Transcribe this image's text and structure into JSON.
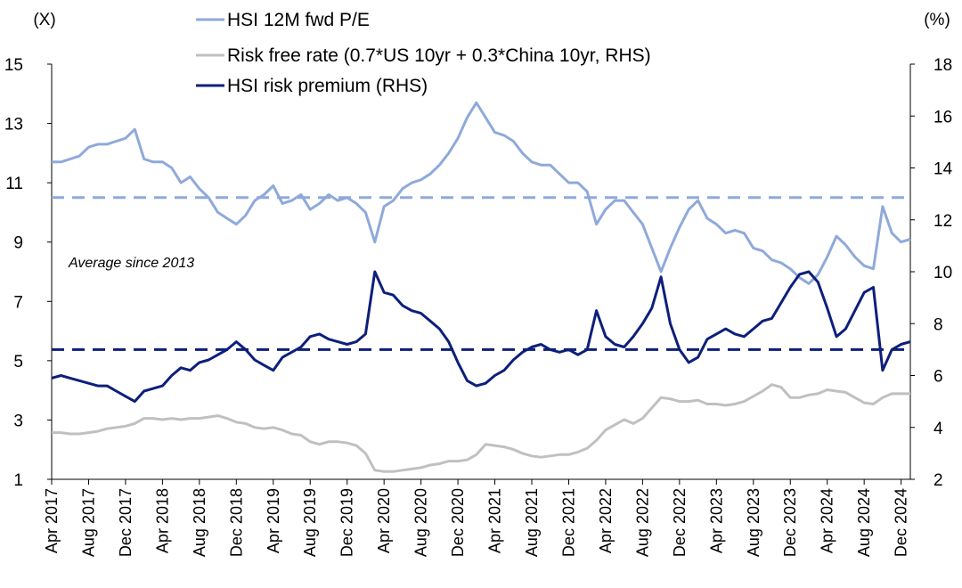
{
  "chart_data": {
    "type": "line",
    "left_axis": {
      "unit_label": "(X)",
      "ylim": [
        1,
        15
      ],
      "ticks": [
        "1",
        "3",
        "5",
        "7",
        "9",
        "11",
        "13",
        "15"
      ]
    },
    "right_axis": {
      "unit_label": "(%)",
      "ylim": [
        2,
        18
      ],
      "ticks": [
        "2",
        "4",
        "6",
        "8",
        "10",
        "12",
        "14",
        "16",
        "18"
      ]
    },
    "x_ticks": [
      "Apr 2017",
      "Aug 2017",
      "Dec 2017",
      "Apr 2018",
      "Aug 2018",
      "Dec 2018",
      "Apr 2019",
      "Aug 2019",
      "Dec 2019",
      "Apr 2020",
      "Aug 2020",
      "Dec 2020",
      "Apr 2021",
      "Aug 2021",
      "Dec 2021",
      "Apr 2022",
      "Aug 2022",
      "Dec 2022",
      "Apr 2023",
      "Aug 2023",
      "Dec 2023",
      "Apr 2024",
      "Aug 2024",
      "Dec 2024"
    ],
    "annotation": "Average since 2013",
    "series": [
      {
        "name": "HSI 12M fwd P/E",
        "axis": "left",
        "color": "#8FA9DB",
        "average": 10.5,
        "x": [
          "2017-04",
          "2017-05",
          "2017-06",
          "2017-07",
          "2017-08",
          "2017-09",
          "2017-10",
          "2017-11",
          "2017-12",
          "2018-01",
          "2018-02",
          "2018-03",
          "2018-04",
          "2018-05",
          "2018-06",
          "2018-07",
          "2018-08",
          "2018-09",
          "2018-10",
          "2018-11",
          "2018-12",
          "2019-01",
          "2019-02",
          "2019-03",
          "2019-04",
          "2019-05",
          "2019-06",
          "2019-07",
          "2019-08",
          "2019-09",
          "2019-10",
          "2019-11",
          "2019-12",
          "2020-01",
          "2020-02",
          "2020-03",
          "2020-04",
          "2020-05",
          "2020-06",
          "2020-07",
          "2020-08",
          "2020-09",
          "2020-10",
          "2020-11",
          "2020-12",
          "2021-01",
          "2021-02",
          "2021-03",
          "2021-04",
          "2021-05",
          "2021-06",
          "2021-07",
          "2021-08",
          "2021-09",
          "2021-10",
          "2021-11",
          "2021-12",
          "2022-01",
          "2022-02",
          "2022-03",
          "2022-04",
          "2022-05",
          "2022-06",
          "2022-07",
          "2022-08",
          "2022-09",
          "2022-10",
          "2022-11",
          "2022-12",
          "2023-01",
          "2023-02",
          "2023-03",
          "2023-04",
          "2023-05",
          "2023-06",
          "2023-07",
          "2023-08",
          "2023-09",
          "2023-10",
          "2023-11",
          "2023-12",
          "2024-01",
          "2024-02",
          "2024-03",
          "2024-04",
          "2024-05",
          "2024-06",
          "2024-07",
          "2024-08",
          "2024-09",
          "2024-10",
          "2024-11",
          "2024-12",
          "2025-01"
        ],
        "values": [
          11.7,
          11.7,
          11.8,
          11.9,
          12.2,
          12.3,
          12.3,
          12.4,
          12.5,
          12.8,
          11.8,
          11.7,
          11.7,
          11.5,
          11.0,
          11.2,
          10.8,
          10.5,
          10.0,
          9.8,
          9.6,
          9.9,
          10.4,
          10.6,
          10.9,
          10.3,
          10.4,
          10.6,
          10.1,
          10.3,
          10.6,
          10.4,
          10.5,
          10.3,
          10.0,
          9.0,
          10.2,
          10.4,
          10.8,
          11.0,
          11.1,
          11.3,
          11.6,
          12.0,
          12.5,
          13.2,
          13.7,
          13.2,
          12.7,
          12.6,
          12.4,
          12.0,
          11.7,
          11.6,
          11.6,
          11.3,
          11.0,
          11.0,
          10.7,
          9.6,
          10.1,
          10.4,
          10.4,
          10.0,
          9.6,
          8.8,
          8.0,
          8.8,
          9.5,
          10.1,
          10.4,
          9.8,
          9.6,
          9.3,
          9.4,
          9.3,
          8.8,
          8.7,
          8.4,
          8.3,
          8.1,
          7.8,
          7.6,
          7.9,
          8.5,
          9.2,
          8.9,
          8.5,
          8.2,
          8.1,
          10.2,
          9.3,
          9.0,
          9.1
        ]
      },
      {
        "name": "Risk free rate (0.7*US 10yr + 0.3*China 10yr, RHS)",
        "axis": "right",
        "color": "#C0C0C0",
        "x": [
          "2017-04",
          "2017-05",
          "2017-06",
          "2017-07",
          "2017-08",
          "2017-09",
          "2017-10",
          "2017-11",
          "2017-12",
          "2018-01",
          "2018-02",
          "2018-03",
          "2018-04",
          "2018-05",
          "2018-06",
          "2018-07",
          "2018-08",
          "2018-09",
          "2018-10",
          "2018-11",
          "2018-12",
          "2019-01",
          "2019-02",
          "2019-03",
          "2019-04",
          "2019-05",
          "2019-06",
          "2019-07",
          "2019-08",
          "2019-09",
          "2019-10",
          "2019-11",
          "2019-12",
          "2020-01",
          "2020-02",
          "2020-03",
          "2020-04",
          "2020-05",
          "2020-06",
          "2020-07",
          "2020-08",
          "2020-09",
          "2020-10",
          "2020-11",
          "2020-12",
          "2021-01",
          "2021-02",
          "2021-03",
          "2021-04",
          "2021-05",
          "2021-06",
          "2021-07",
          "2021-08",
          "2021-09",
          "2021-10",
          "2021-11",
          "2021-12",
          "2022-01",
          "2022-02",
          "2022-03",
          "2022-04",
          "2022-05",
          "2022-06",
          "2022-07",
          "2022-08",
          "2022-09",
          "2022-10",
          "2022-11",
          "2022-12",
          "2023-01",
          "2023-02",
          "2023-03",
          "2023-04",
          "2023-05",
          "2023-06",
          "2023-07",
          "2023-08",
          "2023-09",
          "2023-10",
          "2023-11",
          "2023-12",
          "2024-01",
          "2024-02",
          "2024-03",
          "2024-04",
          "2024-05",
          "2024-06",
          "2024-07",
          "2024-08",
          "2024-09",
          "2024-10",
          "2024-11",
          "2024-12",
          "2025-01"
        ],
        "values": [
          3.8,
          3.8,
          3.75,
          3.75,
          3.8,
          3.85,
          3.95,
          4.0,
          4.05,
          4.15,
          4.35,
          4.35,
          4.3,
          4.35,
          4.3,
          4.35,
          4.35,
          4.4,
          4.45,
          4.35,
          4.2,
          4.15,
          4.0,
          3.95,
          4.0,
          3.9,
          3.75,
          3.7,
          3.45,
          3.35,
          3.45,
          3.45,
          3.4,
          3.3,
          3.0,
          2.35,
          2.3,
          2.3,
          2.35,
          2.4,
          2.45,
          2.55,
          2.6,
          2.7,
          2.7,
          2.75,
          2.95,
          3.35,
          3.3,
          3.25,
          3.15,
          3.0,
          2.9,
          2.85,
          2.9,
          2.95,
          2.95,
          3.05,
          3.2,
          3.5,
          3.9,
          4.1,
          4.3,
          4.15,
          4.35,
          4.75,
          5.15,
          5.1,
          5.0,
          5.0,
          5.05,
          4.9,
          4.9,
          4.85,
          4.9,
          5.0,
          5.2,
          5.4,
          5.65,
          5.55,
          5.15,
          5.15,
          5.25,
          5.3,
          5.45,
          5.4,
          5.35,
          5.15,
          4.95,
          4.9,
          5.15,
          5.3,
          5.3,
          5.3
        ]
      },
      {
        "name": "HSI risk premium (RHS)",
        "axis": "right",
        "color": "#0D1F7A",
        "average": 7.0,
        "x": [
          "2017-04",
          "2017-05",
          "2017-06",
          "2017-07",
          "2017-08",
          "2017-09",
          "2017-10",
          "2017-11",
          "2017-12",
          "2018-01",
          "2018-02",
          "2018-03",
          "2018-04",
          "2018-05",
          "2018-06",
          "2018-07",
          "2018-08",
          "2018-09",
          "2018-10",
          "2018-11",
          "2018-12",
          "2019-01",
          "2019-02",
          "2019-03",
          "2019-04",
          "2019-05",
          "2019-06",
          "2019-07",
          "2019-08",
          "2019-09",
          "2019-10",
          "2019-11",
          "2019-12",
          "2020-01",
          "2020-02",
          "2020-03",
          "2020-04",
          "2020-05",
          "2020-06",
          "2020-07",
          "2020-08",
          "2020-09",
          "2020-10",
          "2020-11",
          "2020-12",
          "2021-01",
          "2021-02",
          "2021-03",
          "2021-04",
          "2021-05",
          "2021-06",
          "2021-07",
          "2021-08",
          "2021-09",
          "2021-10",
          "2021-11",
          "2021-12",
          "2022-01",
          "2022-02",
          "2022-03",
          "2022-04",
          "2022-05",
          "2022-06",
          "2022-07",
          "2022-08",
          "2022-09",
          "2022-10",
          "2022-11",
          "2022-12",
          "2023-01",
          "2023-02",
          "2023-03",
          "2023-04",
          "2023-05",
          "2023-06",
          "2023-07",
          "2023-08",
          "2023-09",
          "2023-10",
          "2023-11",
          "2023-12",
          "2024-01",
          "2024-02",
          "2024-03",
          "2024-04",
          "2024-05",
          "2024-06",
          "2024-07",
          "2024-08",
          "2024-09",
          "2024-10",
          "2024-11",
          "2024-12",
          "2025-01"
        ],
        "values": [
          5.9,
          6.0,
          5.9,
          5.8,
          5.7,
          5.6,
          5.6,
          5.4,
          5.2,
          5.0,
          5.4,
          5.5,
          5.6,
          6.0,
          6.3,
          6.2,
          6.5,
          6.6,
          6.8,
          7.0,
          7.3,
          7.0,
          6.6,
          6.4,
          6.2,
          6.7,
          6.9,
          7.1,
          7.5,
          7.6,
          7.4,
          7.3,
          7.2,
          7.3,
          7.6,
          10.0,
          9.2,
          9.1,
          8.7,
          8.5,
          8.4,
          8.1,
          7.8,
          7.3,
          6.5,
          5.8,
          5.6,
          5.7,
          6.0,
          6.2,
          6.6,
          6.9,
          7.1,
          7.2,
          7.0,
          6.9,
          7.0,
          6.8,
          7.0,
          8.5,
          7.5,
          7.2,
          7.1,
          7.5,
          8.0,
          8.6,
          9.8,
          8.0,
          7.0,
          6.5,
          6.7,
          7.4,
          7.6,
          7.8,
          7.6,
          7.5,
          7.8,
          8.1,
          8.2,
          8.8,
          9.4,
          9.9,
          10.0,
          9.6,
          8.6,
          7.5,
          7.8,
          8.5,
          9.2,
          9.4,
          6.2,
          7.0,
          7.2,
          7.3
        ]
      }
    ]
  }
}
